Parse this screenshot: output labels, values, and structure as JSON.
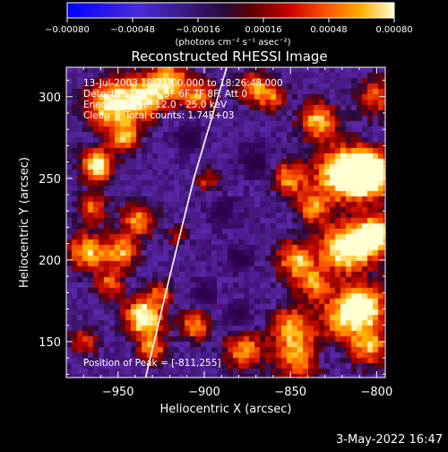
{
  "chart_data": {
    "type": "heatmap",
    "title": "Reconstructed RHESSI Image",
    "xlabel": "Heliocentric X (arcsec)",
    "ylabel": "Heliocentric Y (arcsec)",
    "xlim": [
      -980,
      -795
    ],
    "ylim": [
      128,
      318
    ],
    "xticks": [
      -950,
      -900,
      -850,
      -800
    ],
    "yticks": [
      150,
      200,
      250,
      300
    ],
    "xtick_labels": [
      "−950",
      "−900",
      "−850",
      "−800"
    ],
    "ytick_labels": [
      "150",
      "200",
      "250",
      "300"
    ],
    "colorbar": {
      "min": -0.0008,
      "max": 0.0008,
      "ticks": [
        -0.0008,
        -0.00048,
        -0.00016,
        0.00016,
        0.00048,
        0.0008
      ],
      "tick_labels": [
        "−0.00080",
        "−0.00048",
        "−0.00016",
        "0.00016",
        "0.00048",
        "0.00080"
      ],
      "unit_label": "(photons cm⁻² s⁻¹ asec⁻²)"
    },
    "annotations": {
      "time": "13-Jul-2003 18:21:00.000 to 18:26:48.000",
      "detectors": "Detectors: 3F 4F 5F 6F 7F 8F, Att 0",
      "energy": "Energy Range: 12.0 - 25.0 keV",
      "method": "Clean     Total counts: 1.74E+03",
      "peak": "Position of Peak = [-811,255]"
    },
    "peak_position": [
      -811,
      255
    ],
    "limb_curve": [
      [
        -934,
        128
      ],
      [
        -920,
        190
      ],
      [
        -906,
        250
      ],
      [
        -892,
        300
      ],
      [
        -887,
        318
      ]
    ],
    "blobs": [
      [
        -804,
        253,
        9,
        1.0
      ],
      [
        -820,
        253,
        11,
        0.8
      ],
      [
        -818,
        207,
        10,
        0.8
      ],
      [
        -800,
        215,
        9,
        0.7
      ],
      [
        -834,
        285,
        8,
        0.6
      ],
      [
        -847,
        200,
        8,
        0.6
      ],
      [
        -851,
        250,
        7,
        0.55
      ],
      [
        -837,
        232,
        7,
        0.5
      ],
      [
        -806,
        172,
        9,
        0.65
      ],
      [
        -820,
        165,
        10,
        0.55
      ],
      [
        -804,
        147,
        8,
        0.55
      ],
      [
        -845,
        140,
        10,
        0.55
      ],
      [
        -850,
        160,
        8,
        0.5
      ],
      [
        -836,
        185,
        7,
        0.45
      ],
      [
        -877,
        145,
        8,
        0.55
      ],
      [
        -905,
        160,
        6,
        0.55
      ],
      [
        -935,
        165,
        8,
        0.8
      ],
      [
        -930,
        145,
        6,
        0.5
      ],
      [
        -955,
        185,
        6,
        0.45
      ],
      [
        -968,
        205,
        8,
        0.6
      ],
      [
        -948,
        205,
        7,
        0.55
      ],
      [
        -938,
        225,
        7,
        0.55
      ],
      [
        -962,
        258,
        7,
        0.7
      ],
      [
        -946,
        275,
        6,
        0.55
      ],
      [
        -955,
        295,
        10,
        0.7
      ],
      [
        -935,
        300,
        9,
        0.65
      ],
      [
        -920,
        310,
        8,
        0.55
      ],
      [
        -903,
        300,
        7,
        0.5
      ],
      [
        -872,
        305,
        7,
        0.5
      ],
      [
        -898,
        248,
        5,
        0.35
      ],
      [
        -970,
        150,
        6,
        0.4
      ],
      [
        -965,
        232,
        6,
        0.45
      ],
      [
        -925,
        180,
        5,
        0.4
      ],
      [
        -915,
        215,
        5,
        0.3
      ],
      [
        -860,
        300,
        6,
        0.4
      ],
      [
        -800,
        300,
        8,
        0.45
      ],
      [
        -880,
        200,
        5,
        -0.35
      ],
      [
        -890,
        230,
        6,
        -0.3
      ],
      [
        -870,
        260,
        6,
        -0.35
      ],
      [
        -900,
        180,
        5,
        -0.3
      ],
      [
        -880,
        165,
        6,
        -0.3
      ],
      [
        -910,
        275,
        6,
        -0.3
      ],
      [
        -830,
        140,
        5,
        -0.2
      ]
    ]
  },
  "footer": {
    "date": "3-May-2022 16:47"
  }
}
